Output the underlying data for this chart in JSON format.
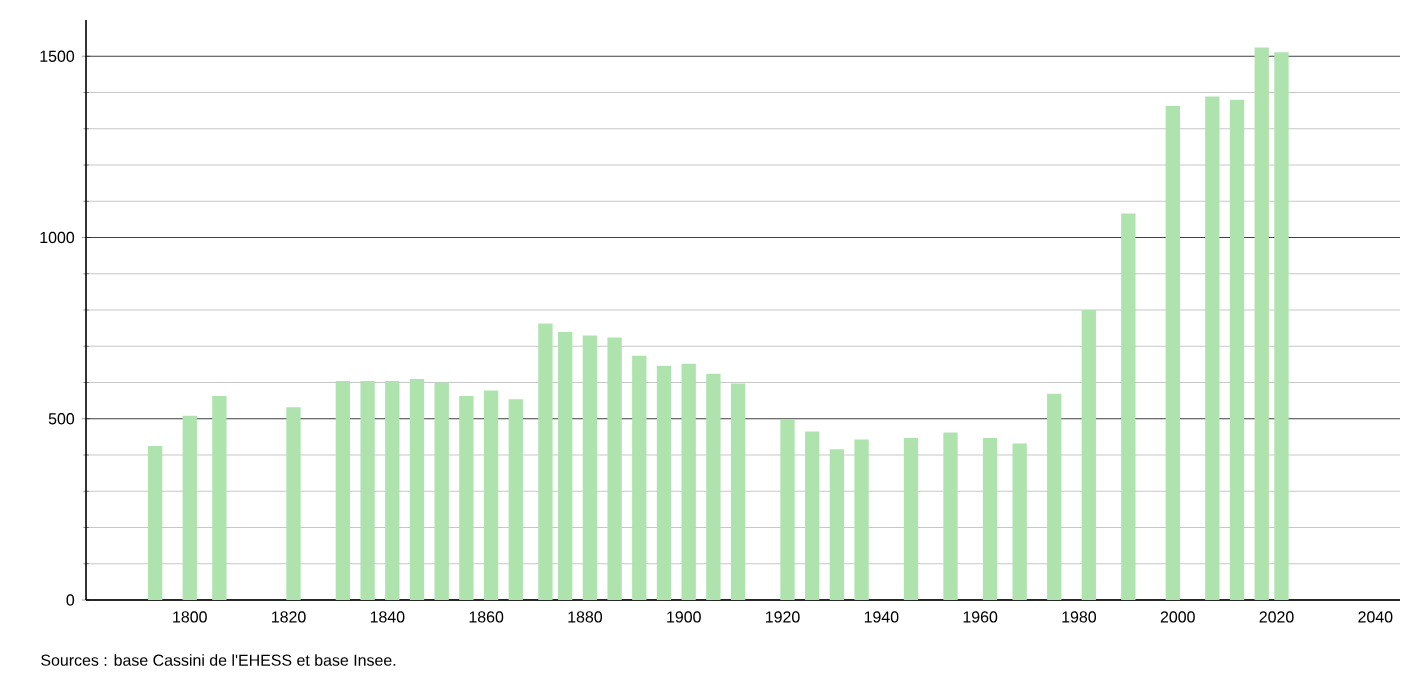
{
  "chart_data": {
    "type": "bar",
    "color": "#aee3ae",
    "x": [
      1793,
      1800,
      1806,
      1821,
      1831,
      1836,
      1841,
      1846,
      1851,
      1856,
      1861,
      1866,
      1872,
      1876,
      1881,
      1886,
      1891,
      1896,
      1901,
      1906,
      1911,
      1921,
      1926,
      1931,
      1936,
      1946,
      1954,
      1962,
      1968,
      1975,
      1982,
      1990,
      1999,
      2007,
      2012,
      2017,
      2021
    ],
    "values": [
      425,
      508,
      563,
      532,
      604,
      604,
      604,
      610,
      600,
      563,
      578,
      554,
      763,
      739,
      730,
      724,
      674,
      646,
      652,
      624,
      597,
      499,
      465,
      416,
      443,
      447,
      462,
      447,
      432,
      569,
      800,
      1066,
      1363,
      1389,
      1380,
      1524,
      1511
    ],
    "xlim": [
      1779,
      2045
    ],
    "xticks": [
      1800,
      1820,
      1840,
      1860,
      1880,
      1900,
      1920,
      1940,
      1960,
      1980,
      2000,
      2020,
      2040
    ],
    "ylim": [
      0,
      1600
    ],
    "yticks": [
      0,
      500,
      1000,
      1500
    ],
    "grid": "y",
    "annotations": [
      "Sources : base Cassini de l'EHESS et base Insee."
    ]
  }
}
